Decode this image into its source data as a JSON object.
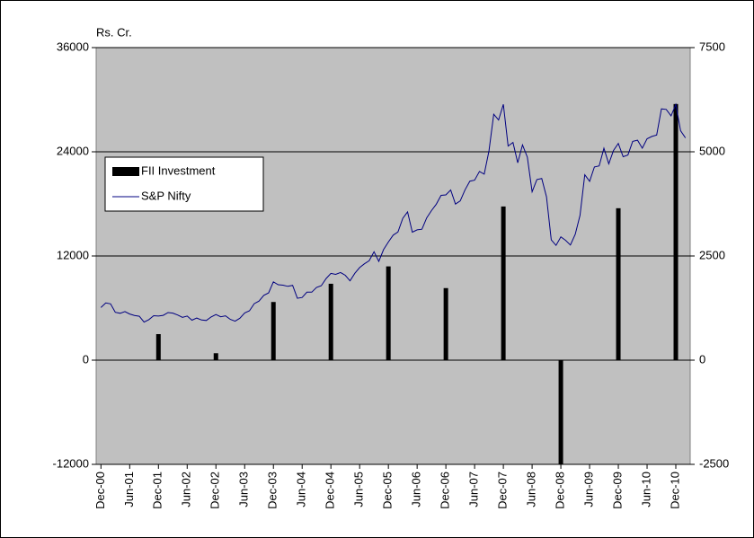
{
  "chart_data": {
    "type": "bar",
    "ylabel": "Rs. Cr.",
    "ylim": [
      -12000,
      36000
    ],
    "yticks": [
      -12000,
      0,
      12000,
      24000,
      36000
    ],
    "y2lim": [
      -2500,
      7500
    ],
    "y2ticks": [
      -2500,
      0,
      2500,
      5000,
      7500
    ],
    "xlim": [
      "Nov-00",
      "Mar-11"
    ],
    "xticks": [
      "Dec-00",
      "Jun-01",
      "Dec-01",
      "Jun-02",
      "Dec-02",
      "Jun-03",
      "Dec-03",
      "Jun-04",
      "Dec-04",
      "Jun-05",
      "Dec-05",
      "Jun-06",
      "Dec-06",
      "Jun-07",
      "Dec-07",
      "Jun-08",
      "Dec-08",
      "Jun-09",
      "Dec-09",
      "Jun-10",
      "Dec-10"
    ],
    "grid": true,
    "legend": "upper left",
    "series": [
      {
        "name": "FII Investment",
        "type": "bar",
        "color": "#000000",
        "x": [
          "Dec-01",
          "Dec-02",
          "Dec-03",
          "Dec-04",
          "Dec-05",
          "Dec-06",
          "Dec-07",
          "Dec-08",
          "Dec-09",
          "Dec-10"
        ],
        "values": [
          3000,
          800,
          6700,
          8800,
          10800,
          8300,
          17700,
          -12000,
          17500,
          29500
        ]
      },
      {
        "name": "S&P Nifty",
        "type": "line",
        "axis": "y2",
        "color": "#000080",
        "x": [
          "Dec-00",
          "Jan-01",
          "Feb-01",
          "Mar-01",
          "Apr-01",
          "May-01",
          "Jun-01",
          "Jul-01",
          "Aug-01",
          "Sep-01",
          "Oct-01",
          "Nov-01",
          "Dec-01",
          "Jan-02",
          "Feb-02",
          "Mar-02",
          "Apr-02",
          "May-02",
          "Jun-02",
          "Jul-02",
          "Aug-02",
          "Sep-02",
          "Oct-02",
          "Nov-02",
          "Dec-02",
          "Jan-03",
          "Feb-03",
          "Mar-03",
          "Apr-03",
          "May-03",
          "Jun-03",
          "Jul-03",
          "Aug-03",
          "Sep-03",
          "Oct-03",
          "Nov-03",
          "Dec-03",
          "Jan-04",
          "Feb-04",
          "Mar-04",
          "Apr-04",
          "May-04",
          "Jun-04",
          "Jul-04",
          "Aug-04",
          "Sep-04",
          "Oct-04",
          "Nov-04",
          "Dec-04",
          "Jan-05",
          "Feb-05",
          "Mar-05",
          "Apr-05",
          "May-05",
          "Jun-05",
          "Jul-05",
          "Aug-05",
          "Sep-05",
          "Oct-05",
          "Nov-05",
          "Dec-05",
          "Jan-06",
          "Feb-06",
          "Mar-06",
          "Apr-06",
          "May-06",
          "Jun-06",
          "Jul-06",
          "Aug-06",
          "Sep-06",
          "Oct-06",
          "Nov-06",
          "Dec-06",
          "Jan-07",
          "Feb-07",
          "Mar-07",
          "Apr-07",
          "May-07",
          "Jun-07",
          "Jul-07",
          "Aug-07",
          "Sep-07",
          "Oct-07",
          "Nov-07",
          "Dec-07",
          "Jan-08",
          "Feb-08",
          "Mar-08",
          "Apr-08",
          "May-08",
          "Jun-08",
          "Jul-08",
          "Aug-08",
          "Sep-08",
          "Oct-08",
          "Nov-08",
          "Dec-08",
          "Jan-09",
          "Feb-09",
          "Mar-09",
          "Apr-09",
          "May-09",
          "Jun-09",
          "Jul-09",
          "Aug-09",
          "Sep-09",
          "Oct-09",
          "Nov-09",
          "Dec-09",
          "Jan-10",
          "Feb-10",
          "Mar-10",
          "Apr-10",
          "May-10",
          "Jun-10",
          "Jul-10",
          "Aug-10",
          "Sep-10",
          "Oct-10",
          "Nov-10",
          "Dec-10",
          "Jan-11",
          "Feb-11"
        ],
        "values": [
          1264,
          1372,
          1352,
          1148,
          1126,
          1167,
          1107,
          1073,
          1053,
          913,
          971,
          1067,
          1059,
          1075,
          1142,
          1129,
          1084,
          1028,
          1058,
          959,
          1010,
          963,
          952,
          1037,
          1094,
          1042,
          1064,
          978,
          935,
          1006,
          1134,
          1186,
          1356,
          1418,
          1556,
          1615,
          1880,
          1810,
          1800,
          1772,
          1796,
          1484,
          1505,
          1632,
          1632,
          1746,
          1786,
          1959,
          2081,
          2058,
          2103,
          2036,
          1902,
          2087,
          2221,
          2312,
          2385,
          2602,
          2370,
          2653,
          2837,
          3001,
          3075,
          3403,
          3558,
          3071,
          3128,
          3143,
          3414,
          3588,
          3744,
          3955,
          3966,
          4083,
          3745,
          3822,
          4088,
          4296,
          4318,
          4529,
          4464,
          5021,
          5901,
          5763,
          6139,
          5137,
          5224,
          4735,
          5166,
          4870,
          4040,
          4333,
          4360,
          3921,
          2885,
          2755,
          2959,
          2874,
          2763,
          3021,
          3474,
          4449,
          4291,
          4636,
          4662,
          5084,
          4712,
          5033,
          5201,
          4882,
          4922,
          5249,
          5278,
          5087,
          5313,
          5368,
          5402,
          6030,
          6018,
          5863,
          6135,
          5506,
          5333
        ]
      }
    ]
  }
}
